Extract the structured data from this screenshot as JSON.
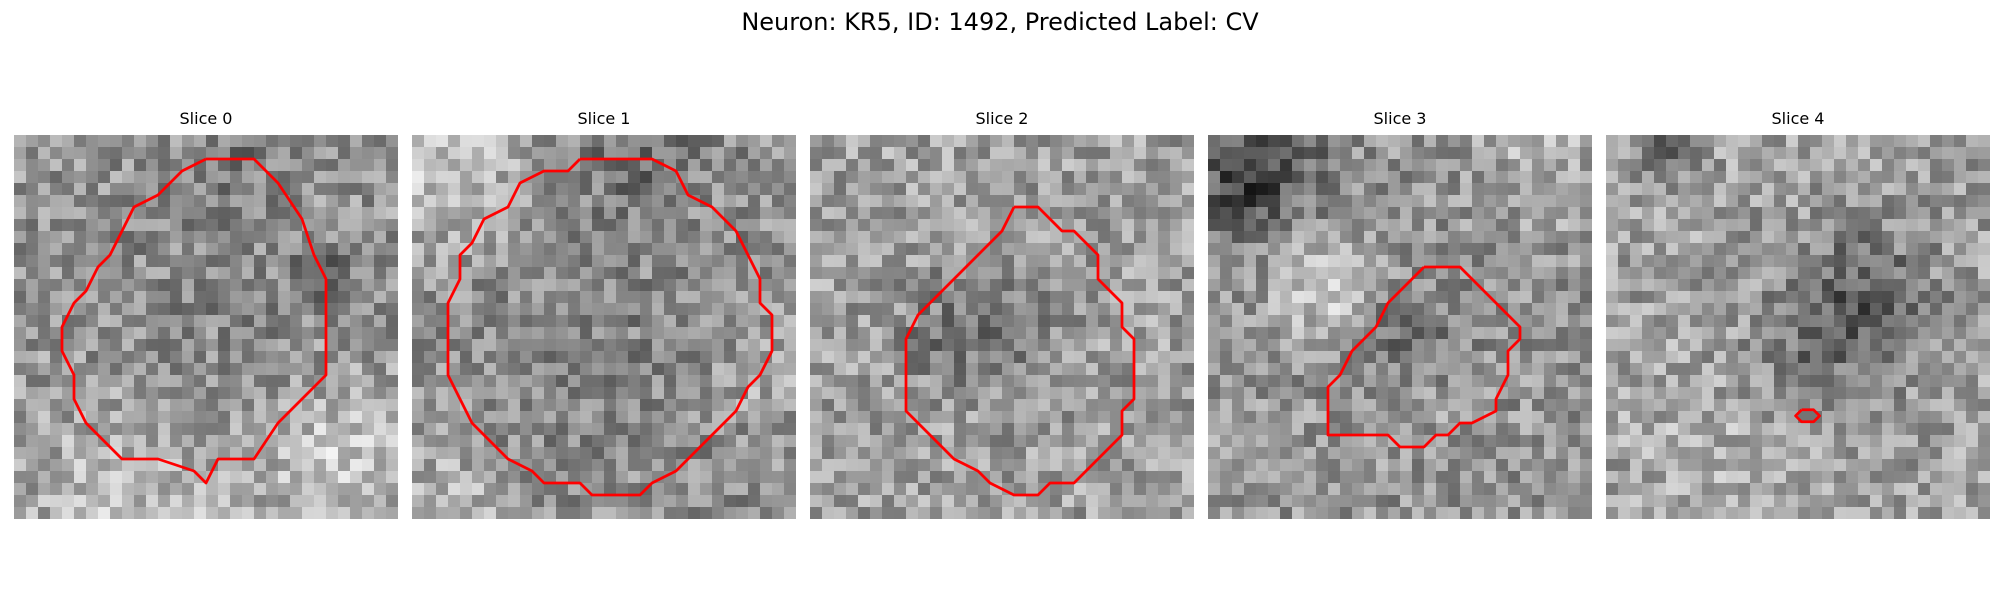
{
  "figure": {
    "suptitle": "Neuron: KR5, ID: 1492, Predicted Label: CV",
    "colormap": "grayscale",
    "contour_color": "#ff0000",
    "axes_visible": false
  },
  "panels": [
    {
      "title": "Slice 0"
    },
    {
      "title": "Slice 1"
    },
    {
      "title": "Slice 2"
    },
    {
      "title": "Slice 3"
    },
    {
      "title": "Slice 4"
    }
  ]
}
